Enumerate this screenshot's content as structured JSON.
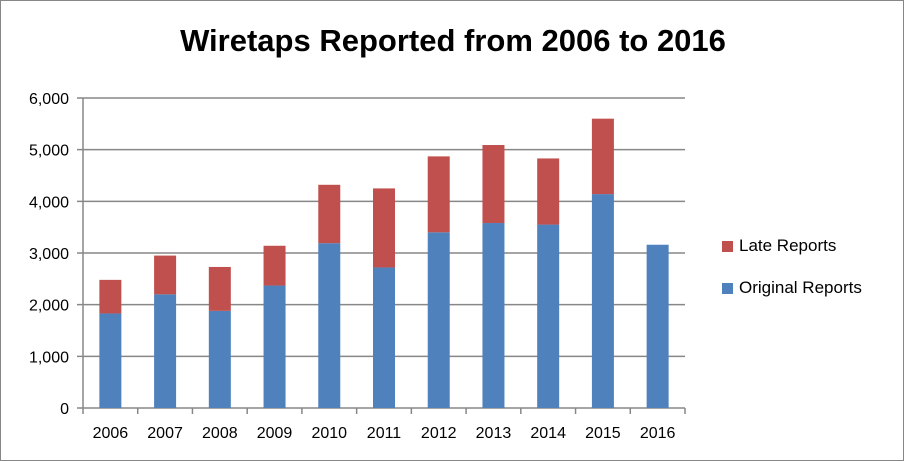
{
  "chart_data": {
    "type": "bar",
    "stacked": true,
    "title": "Wiretaps Reported from 2006 to 2016",
    "xlabel": "",
    "ylabel": "",
    "ylim": [
      0,
      6000
    ],
    "yticks": [
      "0",
      "1,000",
      "2,000",
      "3,000",
      "4,000",
      "5,000",
      "6,000"
    ],
    "grid": true,
    "legend_position": "right",
    "categories": [
      "2006",
      "2007",
      "2008",
      "2009",
      "2010",
      "2011",
      "2012",
      "2013",
      "2014",
      "2015",
      "2016"
    ],
    "series": [
      {
        "name": "Original Reports",
        "color": "#4f81bd",
        "values": [
          1830,
          2200,
          1880,
          2370,
          3190,
          2720,
          3400,
          3580,
          3550,
          4140,
          3160
        ]
      },
      {
        "name": "Late Reports",
        "color": "#c0504d",
        "values": [
          650,
          750,
          850,
          770,
          1130,
          1530,
          1470,
          1510,
          1280,
          1460,
          0
        ]
      }
    ]
  }
}
